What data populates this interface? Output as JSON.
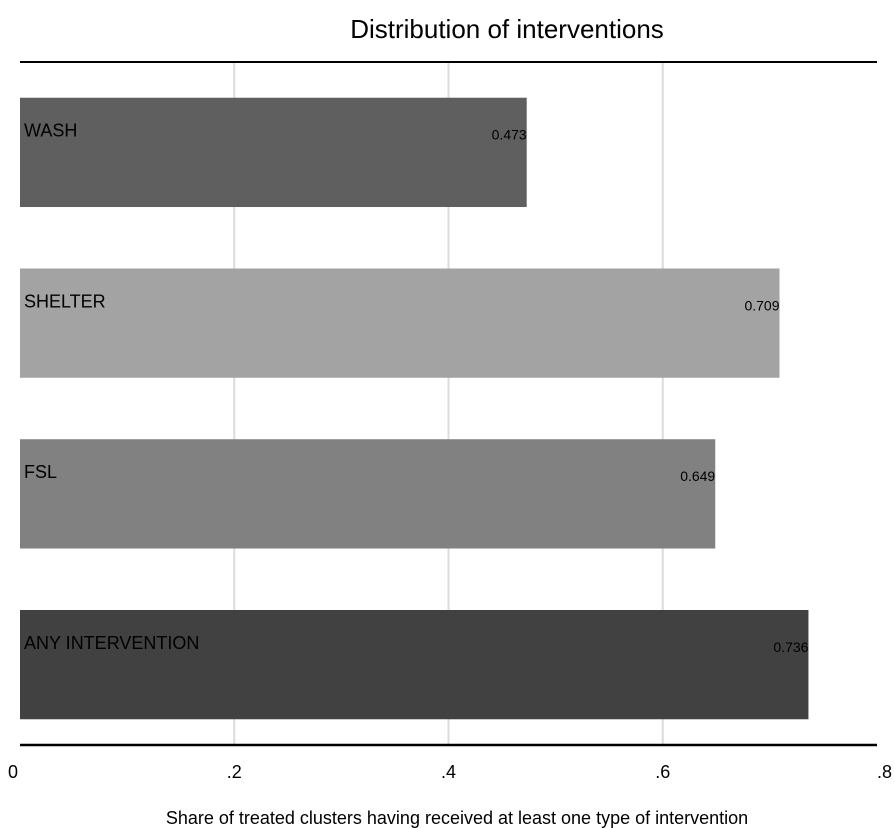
{
  "chart_data": {
    "type": "bar",
    "orientation": "horizontal",
    "title": "Distribution of interventions",
    "xlabel": "Share of treated clusters having received at least one type of intervention",
    "ylabel": "",
    "xlim": [
      0,
      0.8
    ],
    "x_ticks": [
      {
        "value": 0,
        "label": "0"
      },
      {
        "value": 0.2,
        "label": ".2"
      },
      {
        "value": 0.4,
        "label": ".4"
      },
      {
        "value": 0.6,
        "label": ".6"
      },
      {
        "value": 0.8,
        "label": ".8"
      }
    ],
    "categories": [
      "WASH",
      "SHELTER",
      "FSL",
      "ANY INTERVENTION"
    ],
    "values": [
      0.473,
      0.709,
      0.649,
      0.736
    ],
    "value_labels": [
      "0.473",
      "0.709",
      "0.649",
      "0.736"
    ],
    "colors": [
      "#5f5f5f",
      "#a3a3a3",
      "#818181",
      "#414141"
    ],
    "grid": true,
    "legend": "none"
  }
}
